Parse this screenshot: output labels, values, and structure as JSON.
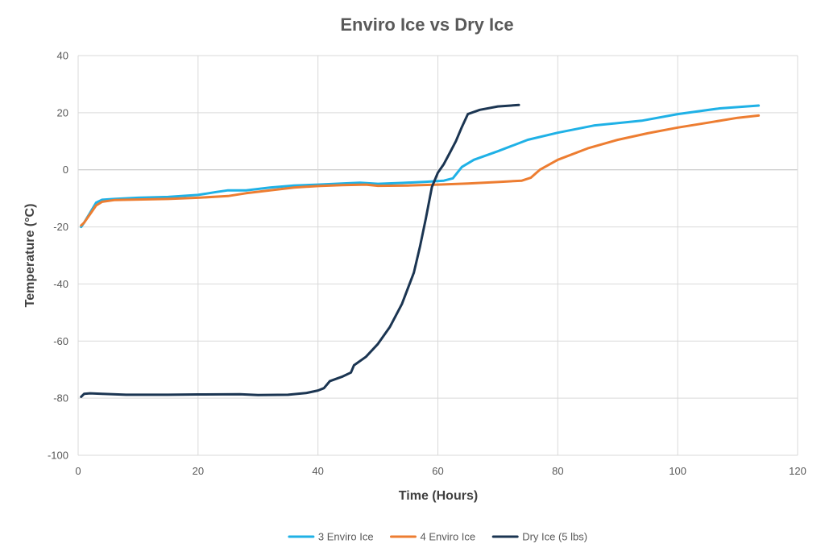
{
  "chart_data": {
    "type": "line",
    "title": "Enviro Ice vs Dry Ice",
    "xlabel": "Time (Hours)",
    "ylabel": "Temperature (°C)",
    "xlim": [
      0,
      120
    ],
    "ylim": [
      -100,
      40
    ],
    "x_ticks": [
      0,
      20,
      40,
      60,
      80,
      100,
      120
    ],
    "y_ticks": [
      -100,
      -80,
      -60,
      -40,
      -20,
      0,
      20,
      40
    ],
    "grid": true,
    "legend_position": "bottom",
    "series": [
      {
        "name": "3 Enviro Ice",
        "color": "#1fb1e6",
        "points": [
          [
            0.5,
            -20
          ],
          [
            1,
            -18.5
          ],
          [
            2,
            -15
          ],
          [
            3,
            -11.5
          ],
          [
            4,
            -10.5
          ],
          [
            6,
            -10.2
          ],
          [
            10,
            -9.8
          ],
          [
            15,
            -9.5
          ],
          [
            20,
            -8.8
          ],
          [
            23,
            -7.8
          ],
          [
            25,
            -7.2
          ],
          [
            28,
            -7.2
          ],
          [
            32,
            -6.2
          ],
          [
            36,
            -5.5
          ],
          [
            40,
            -5.2
          ],
          [
            44,
            -4.8
          ],
          [
            47,
            -4.5
          ],
          [
            50,
            -4.9
          ],
          [
            54,
            -4.6
          ],
          [
            58,
            -4.2
          ],
          [
            61,
            -3.8
          ],
          [
            62.5,
            -3
          ],
          [
            64,
            1
          ],
          [
            66,
            3.5
          ],
          [
            70,
            6.5
          ],
          [
            75,
            10.5
          ],
          [
            80,
            13
          ],
          [
            86,
            15.5
          ],
          [
            94,
            17.2
          ],
          [
            100,
            19.5
          ],
          [
            107,
            21.5
          ],
          [
            113.5,
            22.5
          ]
        ]
      },
      {
        "name": "4 Enviro Ice",
        "color": "#ed7d31",
        "points": [
          [
            0.5,
            -19.5
          ],
          [
            1,
            -18.5
          ],
          [
            2,
            -15.5
          ],
          [
            3,
            -12.5
          ],
          [
            4,
            -11.2
          ],
          [
            6,
            -10.6
          ],
          [
            10,
            -10.4
          ],
          [
            15,
            -10.2
          ],
          [
            20,
            -9.8
          ],
          [
            25,
            -9.2
          ],
          [
            28,
            -8.2
          ],
          [
            32,
            -7.2
          ],
          [
            36,
            -6.2
          ],
          [
            40,
            -5.7
          ],
          [
            44,
            -5.4
          ],
          [
            48,
            -5.2
          ],
          [
            50,
            -5.6
          ],
          [
            55,
            -5.5
          ],
          [
            60,
            -5.2
          ],
          [
            65,
            -4.8
          ],
          [
            70,
            -4.3
          ],
          [
            74,
            -3.8
          ],
          [
            75.5,
            -2.8
          ],
          [
            77,
            0
          ],
          [
            80,
            3.5
          ],
          [
            85,
            7.5
          ],
          [
            90,
            10.5
          ],
          [
            95,
            12.8
          ],
          [
            100,
            14.8
          ],
          [
            105,
            16.5
          ],
          [
            110,
            18.2
          ],
          [
            113.5,
            19
          ]
        ]
      },
      {
        "name": "Dry Ice (5 lbs)",
        "color": "#1b3552",
        "points": [
          [
            0.5,
            -79.5
          ],
          [
            1,
            -78.5
          ],
          [
            2,
            -78.3
          ],
          [
            4,
            -78.5
          ],
          [
            8,
            -78.8
          ],
          [
            15,
            -78.8
          ],
          [
            20,
            -78.7
          ],
          [
            27,
            -78.6
          ],
          [
            30,
            -78.9
          ],
          [
            35,
            -78.8
          ],
          [
            38,
            -78.2
          ],
          [
            40,
            -77.3
          ],
          [
            41,
            -76.5
          ],
          [
            42,
            -74
          ],
          [
            44,
            -72.5
          ],
          [
            45.5,
            -71
          ],
          [
            46,
            -68.5
          ],
          [
            48,
            -65.5
          ],
          [
            50,
            -61
          ],
          [
            52,
            -55
          ],
          [
            54,
            -47
          ],
          [
            56,
            -36
          ],
          [
            57,
            -27
          ],
          [
            58,
            -17
          ],
          [
            59,
            -6
          ],
          [
            60,
            -1
          ],
          [
            61,
            2
          ],
          [
            62,
            6
          ],
          [
            63,
            10
          ],
          [
            64,
            15
          ],
          [
            65,
            19.5
          ],
          [
            67,
            21
          ],
          [
            70,
            22.2
          ],
          [
            73.5,
            22.7
          ]
        ]
      }
    ]
  }
}
